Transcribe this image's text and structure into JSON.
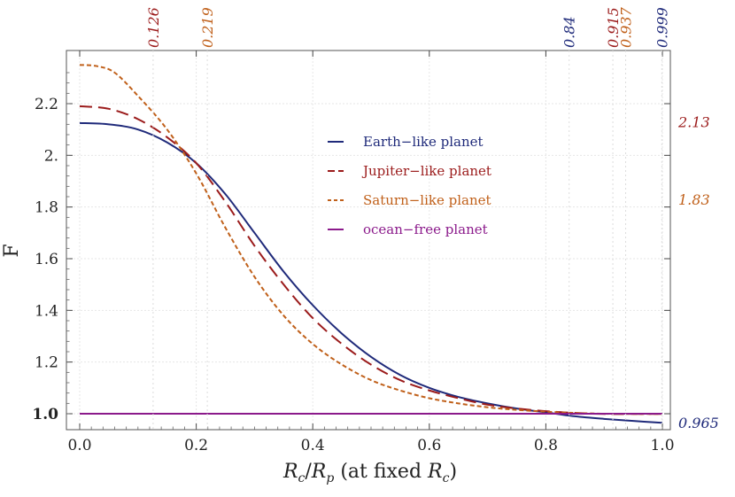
{
  "chart_data": {
    "type": "line",
    "xlabel": "R_c/R_p (at fixed R_c)",
    "xlabel_parts": {
      "numerator": "R",
      "numerator_sub": "c",
      "slash": "/",
      "denominator": "R",
      "denominator_sub": "p",
      "suffix_open": " (at fixed ",
      "fixed": "R",
      "fixed_sub": "c",
      "suffix_close": ")"
    },
    "ylabel": "F",
    "xlim": [
      0.0,
      1.0
    ],
    "ylim": [
      0.96,
      2.36
    ],
    "x_ticks": [
      "0.0",
      "0.2",
      "0.4",
      "0.6",
      "0.8",
      "1.0"
    ],
    "x_tick_values": [
      0.0,
      0.2,
      0.4,
      0.6,
      0.8,
      1.0
    ],
    "y_ticks": [
      "1.0",
      "1.2",
      "1.4",
      "1.6",
      "1.8",
      "2.",
      "2.2"
    ],
    "y_tick_values": [
      1.0,
      1.2,
      1.4,
      1.6,
      1.8,
      2.0,
      2.2
    ],
    "y_tick_highlight": "1.0",
    "top_markers": [
      {
        "label": "0.126",
        "value": 0.126,
        "color": "#9b1b1b"
      },
      {
        "label": "0.219",
        "value": 0.219,
        "color": "#c0601a"
      },
      {
        "label": "0.84",
        "value": 0.84,
        "color": "#1f2a7a"
      },
      {
        "label": "0.915",
        "value": 0.915,
        "color": "#9b1b1b"
      },
      {
        "label": "0.937",
        "value": 0.937,
        "color": "#c0601a"
      },
      {
        "label": "0.999",
        "value": 0.999,
        "color": "#1f2a7a"
      }
    ],
    "right_markers": [
      {
        "label": "2.13",
        "value": 2.13,
        "color": "#9b1b1b"
      },
      {
        "label": "1.83",
        "value": 1.83,
        "color": "#c0601a"
      },
      {
        "label": "0.965",
        "value": 0.965,
        "color": "#1f2a7a"
      }
    ],
    "series": [
      {
        "name": "Earth−like planet",
        "color": "#1f2a7a",
        "dash": "solid",
        "x": [
          0.0,
          0.05,
          0.1,
          0.15,
          0.2,
          0.25,
          0.3,
          0.35,
          0.4,
          0.45,
          0.5,
          0.55,
          0.6,
          0.65,
          0.7,
          0.75,
          0.8,
          0.85,
          0.9,
          0.95,
          1.0
        ],
        "y": [
          2.125,
          2.12,
          2.1,
          2.05,
          1.97,
          1.85,
          1.7,
          1.55,
          1.42,
          1.31,
          1.22,
          1.15,
          1.1,
          1.065,
          1.04,
          1.02,
          1.005,
          0.99,
          0.98,
          0.972,
          0.965
        ]
      },
      {
        "name": "Jupiter−like planet",
        "color": "#9b1b1b",
        "dash": "long",
        "x": [
          0.0,
          0.05,
          0.1,
          0.15,
          0.2,
          0.25,
          0.3,
          0.35,
          0.4,
          0.45,
          0.5,
          0.55,
          0.6,
          0.65,
          0.7,
          0.75,
          0.8,
          0.85,
          0.9,
          0.95,
          1.0
        ],
        "y": [
          2.19,
          2.18,
          2.14,
          2.07,
          1.97,
          1.82,
          1.65,
          1.5,
          1.37,
          1.27,
          1.19,
          1.13,
          1.09,
          1.06,
          1.035,
          1.02,
          1.01,
          1.003,
          0.999,
          0.999,
          0.999
        ]
      },
      {
        "name": "Saturn−like planet",
        "color": "#c0601a",
        "dash": "short",
        "x": [
          0.0,
          0.03,
          0.06,
          0.1,
          0.15,
          0.2,
          0.25,
          0.3,
          0.35,
          0.4,
          0.45,
          0.5,
          0.55,
          0.6,
          0.65,
          0.7,
          0.75,
          0.8,
          0.85,
          0.9,
          0.95,
          1.0
        ],
        "y": [
          2.35,
          2.345,
          2.32,
          2.23,
          2.1,
          1.93,
          1.72,
          1.53,
          1.38,
          1.27,
          1.19,
          1.13,
          1.09,
          1.06,
          1.04,
          1.025,
          1.015,
          1.008,
          1.003,
          1.0,
          0.999,
          0.999
        ]
      },
      {
        "name": "ocean−free planet",
        "color": "#8b1a8b",
        "dash": "solid",
        "x": [
          0.0,
          1.0
        ],
        "y": [
          1.0,
          1.0
        ]
      }
    ],
    "legend_position": "upper-right"
  }
}
